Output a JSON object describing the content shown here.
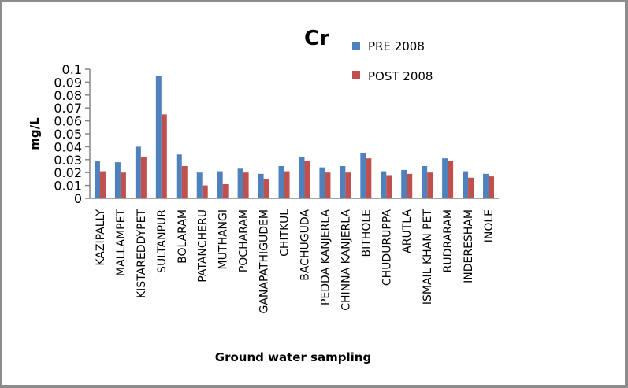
{
  "chart_data": {
    "type": "bar",
    "title": "Cr",
    "xlabel": "Ground water sampling",
    "ylabel": "mg/L",
    "ylim": [
      0,
      0.1
    ],
    "yticks": [
      "0",
      "0.01",
      "0.02",
      "0.03",
      "0.04",
      "0.05",
      "0.06",
      "0.07",
      "0.08",
      "0.09",
      "0.1"
    ],
    "ytick_values": [
      0,
      0.01,
      0.02,
      0.03,
      0.04,
      0.05,
      0.06,
      0.07,
      0.08,
      0.09,
      0.1
    ],
    "grid": false,
    "legend_position": "top-right",
    "categories": [
      "KAZIPALLY",
      "MALLAMPET",
      "KISTAREDDYPET",
      "SULTANPUR",
      "BOLARAM",
      "PATANCHERU",
      "MUTHANGI",
      "POCHARAM",
      "GANAPATHIGUDEM",
      "CHITKUL",
      "BACHUGUDA",
      "PEDDA KANJERLA",
      "CHINNA KANJERLA",
      "BITHOLE",
      "CHUDURUPPA",
      "ARUTLA",
      "ISMAIL KHAN PET",
      "RUDRARAM",
      "INDERESHAM",
      "INOLE"
    ],
    "series": [
      {
        "name": "PRE 2008",
        "color": "#4f81bd",
        "values": [
          0.029,
          0.028,
          0.04,
          0.095,
          0.034,
          0.02,
          0.021,
          0.023,
          0.019,
          0.025,
          0.032,
          0.024,
          0.025,
          0.035,
          0.021,
          0.022,
          0.025,
          0.031,
          0.021,
          0.019
        ]
      },
      {
        "name": "POST 2008",
        "color": "#c0504d",
        "values": [
          0.021,
          0.02,
          0.032,
          0.065,
          0.025,
          0.01,
          0.011,
          0.02,
          0.015,
          0.021,
          0.029,
          0.02,
          0.02,
          0.031,
          0.018,
          0.019,
          0.02,
          0.029,
          0.016,
          0.017
        ]
      }
    ]
  }
}
